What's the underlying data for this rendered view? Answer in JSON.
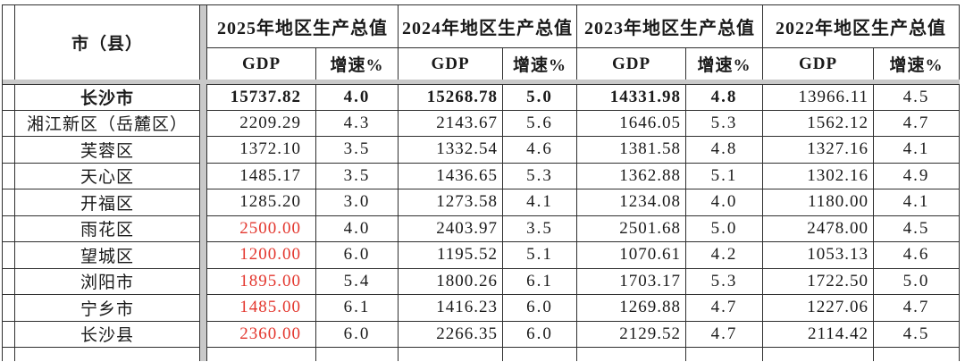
{
  "table": {
    "corner_header": "市（县）",
    "sub_headers": {
      "gdp": "GDP",
      "rate": "增速%"
    },
    "year_groups": [
      {
        "title": "2025年地区生产总值"
      },
      {
        "title": "2024年地区生产总值"
      },
      {
        "title": "2023年地区生产总值"
      },
      {
        "title": "2022年地区生产总值"
      }
    ],
    "rows": [
      {
        "name": "长沙市",
        "name_bold": true,
        "cells": [
          {
            "gdp": "15737.82",
            "rate": "4.0",
            "bold": true
          },
          {
            "gdp": "15268.78",
            "rate": "5.0",
            "bold": true
          },
          {
            "gdp": "14331.98",
            "rate": "4.8",
            "bold": true
          },
          {
            "gdp": "13966.11",
            "rate": "4.5",
            "bold": false
          }
        ]
      },
      {
        "name": "湘江新区（岳麓区）",
        "cells": [
          {
            "gdp": "2209.29",
            "rate": "4.3"
          },
          {
            "gdp": "2143.67",
            "rate": "5.6"
          },
          {
            "gdp": "1646.05",
            "rate": "5.3"
          },
          {
            "gdp": "1562.12",
            "rate": "4.7"
          }
        ]
      },
      {
        "name": "芙蓉区",
        "cells": [
          {
            "gdp": "1372.10",
            "rate": "3.5"
          },
          {
            "gdp": "1332.54",
            "rate": "4.6"
          },
          {
            "gdp": "1381.58",
            "rate": "4.8"
          },
          {
            "gdp": "1327.16",
            "rate": "4.1"
          }
        ]
      },
      {
        "name": "天心区",
        "cells": [
          {
            "gdp": "1485.17",
            "rate": "3.5"
          },
          {
            "gdp": "1436.65",
            "rate": "5.3"
          },
          {
            "gdp": "1362.88",
            "rate": "5.1"
          },
          {
            "gdp": "1302.16",
            "rate": "4.9"
          }
        ]
      },
      {
        "name": "开福区",
        "cells": [
          {
            "gdp": "1285.20",
            "rate": "3.0"
          },
          {
            "gdp": "1273.58",
            "rate": "4.1"
          },
          {
            "gdp": "1234.08",
            "rate": "4.0"
          },
          {
            "gdp": "1180.00",
            "rate": "4.1"
          }
        ]
      },
      {
        "name": "雨花区",
        "cells": [
          {
            "gdp": "2500.00",
            "rate": "4.0",
            "gdp_red": true
          },
          {
            "gdp": "2403.97",
            "rate": "3.5"
          },
          {
            "gdp": "2501.68",
            "rate": "5.0"
          },
          {
            "gdp": "2478.00",
            "rate": "4.5"
          }
        ]
      },
      {
        "name": "望城区",
        "cells": [
          {
            "gdp": "1200.00",
            "rate": "6.0",
            "gdp_red": true
          },
          {
            "gdp": "1195.52",
            "rate": "5.1"
          },
          {
            "gdp": "1070.61",
            "rate": "4.2"
          },
          {
            "gdp": "1053.13",
            "rate": "4.6"
          }
        ]
      },
      {
        "name": "浏阳市",
        "cells": [
          {
            "gdp": "1895.00",
            "rate": "5.4",
            "gdp_red": true
          },
          {
            "gdp": "1800.26",
            "rate": "6.1"
          },
          {
            "gdp": "1703.17",
            "rate": "5.3"
          },
          {
            "gdp": "1722.50",
            "rate": "5.0"
          }
        ]
      },
      {
        "name": "宁乡市",
        "cells": [
          {
            "gdp": "1485.00",
            "rate": "6.1",
            "gdp_red": true
          },
          {
            "gdp": "1416.23",
            "rate": "6.0"
          },
          {
            "gdp": "1269.88",
            "rate": "4.7"
          },
          {
            "gdp": "1227.06",
            "rate": "4.7"
          }
        ]
      },
      {
        "name": "长沙县",
        "cells": [
          {
            "gdp": "2360.00",
            "rate": "6.0",
            "gdp_red": true
          },
          {
            "gdp": "2266.35",
            "rate": "6.0"
          },
          {
            "gdp": "2129.52",
            "rate": "4.7"
          },
          {
            "gdp": "2114.42",
            "rate": "4.5"
          }
        ]
      }
    ],
    "colors": {
      "red_value": "#e3372e",
      "grid_line": "#2f2f2f",
      "pane_divider": "#c9c9c9",
      "background": "#ffffff"
    }
  }
}
